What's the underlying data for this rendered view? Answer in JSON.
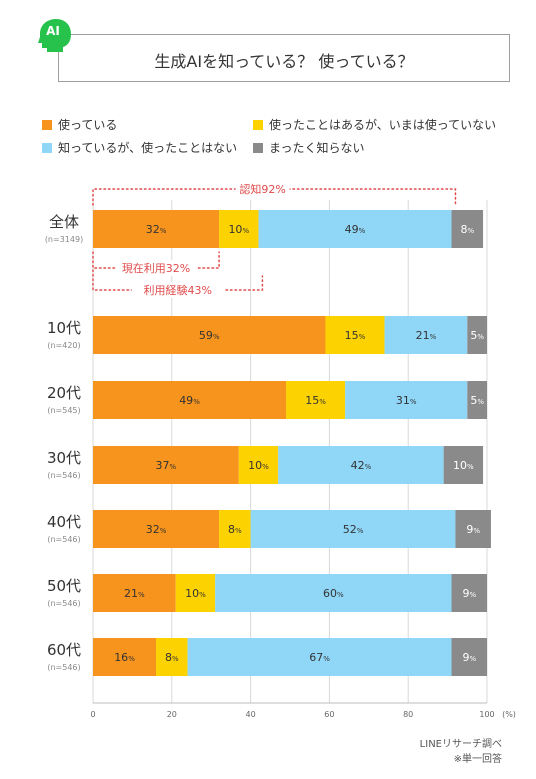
{
  "title": "生成AIを知っている？ 使っている？",
  "badge": "AI",
  "colors": {
    "using": "#f7941d",
    "used_before": "#fcd200",
    "know_not_used": "#8fd6f7",
    "dont_know": "#8a8a8a",
    "annotation": "#e04b4b",
    "badge": "#27c24c"
  },
  "legend": [
    {
      "key": "using",
      "label": "使っている"
    },
    {
      "key": "used_before",
      "label": "使ったことはあるが、いまは使っていない"
    },
    {
      "key": "know_not_used",
      "label": "知っているが、使ったことはない"
    },
    {
      "key": "dont_know",
      "label": "まったく知らない"
    }
  ],
  "chart_data": {
    "type": "bar",
    "orientation": "horizontal",
    "stacked": true,
    "categories": [
      "全体",
      "10代",
      "20代",
      "30代",
      "40代",
      "50代",
      "60代"
    ],
    "sample_sizes": [
      "(n=3149)",
      "(n=420)",
      "(n=545)",
      "(n=546)",
      "(n=546)",
      "(n=546)",
      "(n=546)"
    ],
    "series": [
      {
        "key": "using",
        "name": "使っている",
        "values": [
          32,
          59,
          49,
          37,
          32,
          21,
          16
        ]
      },
      {
        "key": "used_before",
        "name": "使ったことはあるが、いまは使っていない",
        "values": [
          10,
          15,
          15,
          10,
          8,
          10,
          8
        ]
      },
      {
        "key": "know_not_used",
        "name": "知っているが、使ったことはない",
        "values": [
          49,
          21,
          31,
          42,
          52,
          60,
          67
        ]
      },
      {
        "key": "dont_know",
        "name": "まったく知らない",
        "values": [
          8,
          5,
          5,
          10,
          9,
          9,
          9
        ]
      }
    ],
    "value_suffix": "%",
    "xlim": [
      0,
      100
    ],
    "xticks": [
      0,
      20,
      40,
      60,
      80,
      100
    ],
    "xunit": "(%)",
    "grid": true,
    "annotations": [
      {
        "label": "認知92%",
        "value": 92
      },
      {
        "label": "現在利用32%",
        "value": 32
      },
      {
        "label": "利用経験43%",
        "value": 43
      }
    ]
  },
  "footer": {
    "source": "LINEリサーチ調べ",
    "note": "※単一回答"
  }
}
